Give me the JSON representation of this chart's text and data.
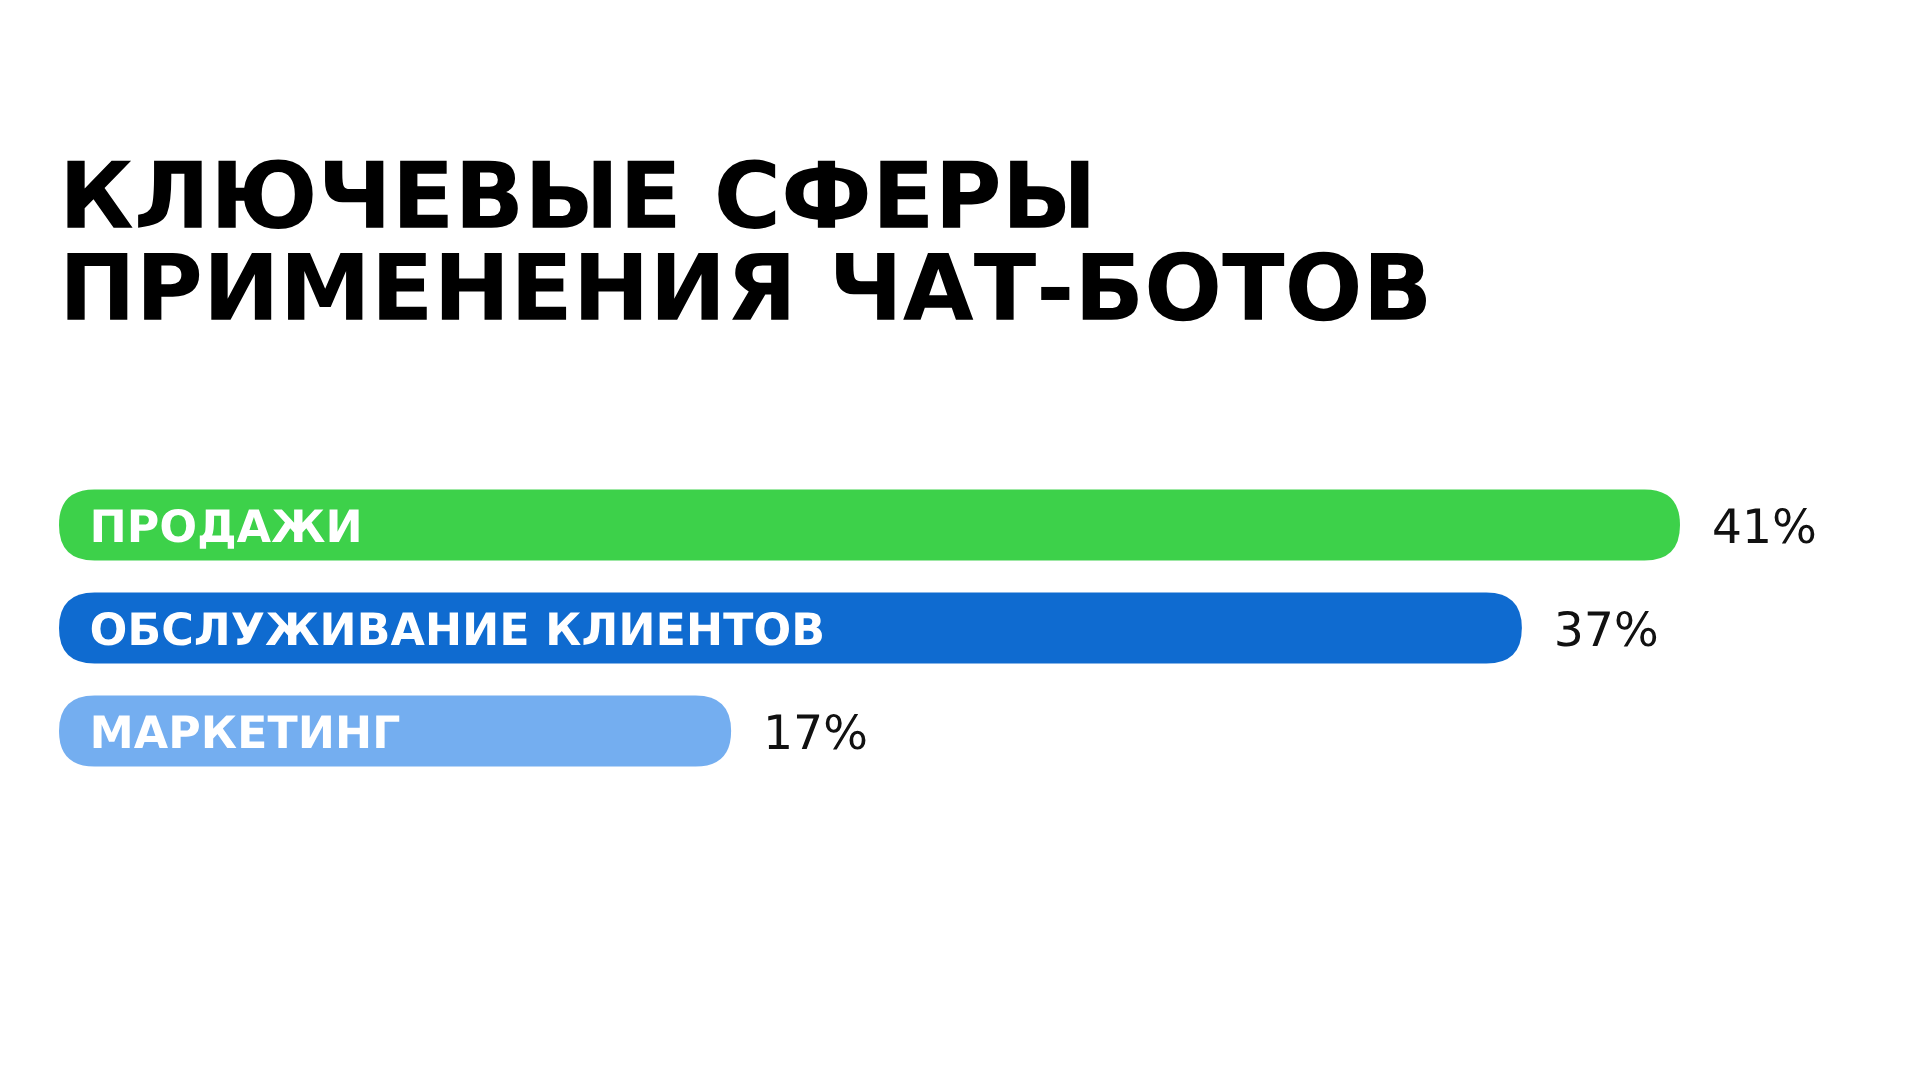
{
  "chart_data": {
    "type": "bar",
    "orientation": "horizontal",
    "title": "КЛЮЧЕВЫЕ СФЕРЫ\nПРИМЕНЕНИЯ ЧАТ-БОТОВ",
    "categories": [
      "ПРОДАЖИ",
      "ОБСЛУЖИВАНИЕ КЛИЕНТОВ",
      "МАРКЕТИНГ"
    ],
    "values": [
      41,
      37,
      17
    ],
    "colors": [
      "#3dd14a",
      "#0f6bd0",
      "#74aef0"
    ],
    "value_labels": [
      "41%",
      "37%",
      "17%"
    ]
  }
}
